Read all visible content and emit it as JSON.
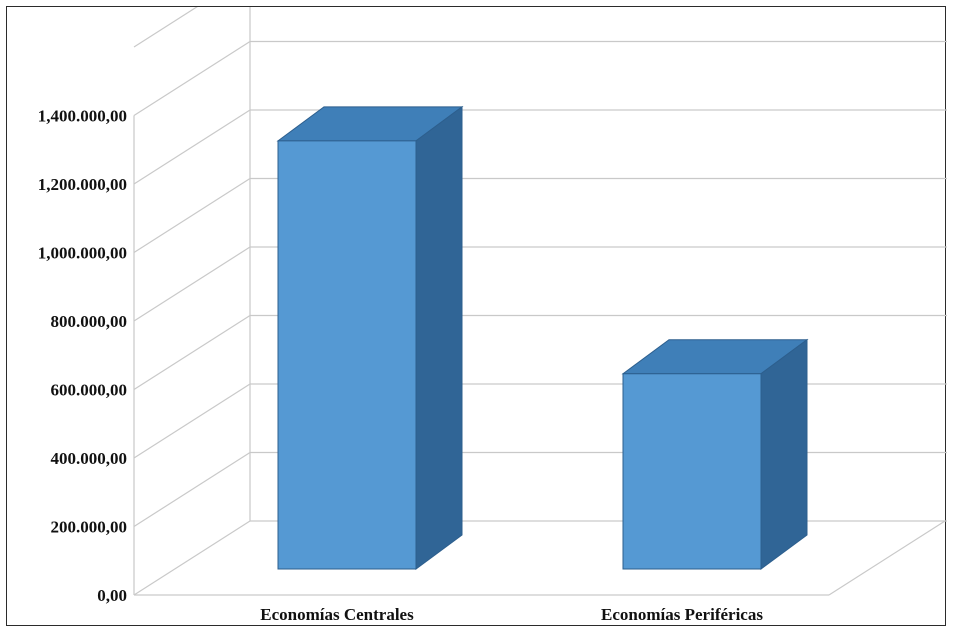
{
  "chart_data": {
    "type": "bar",
    "style": "3d-column",
    "categories": [
      "Economías Centrales",
      "Economías Periféricas"
    ],
    "values": [
      1250000,
      570000
    ],
    "ylim": [
      0,
      1400000
    ],
    "y_ticks": [
      0,
      200000,
      400000,
      600000,
      800000,
      1000000,
      1200000,
      1400000
    ],
    "y_tick_labels": [
      "0,00",
      "200.000,00",
      "400.000,00",
      "600.000,00",
      "800.000,00",
      "1,000.000,00",
      "1,200.000,00",
      "1,400.000,00"
    ],
    "title": "",
    "xlabel": "",
    "ylabel": "",
    "grid": true,
    "legend": "none",
    "colors": {
      "bar_front": "#5599d3",
      "bar_top": "#3f7fb8",
      "bar_side": "#306596",
      "bar_edge": "#2d5f8e",
      "grid": "#c9c9c9"
    }
  }
}
